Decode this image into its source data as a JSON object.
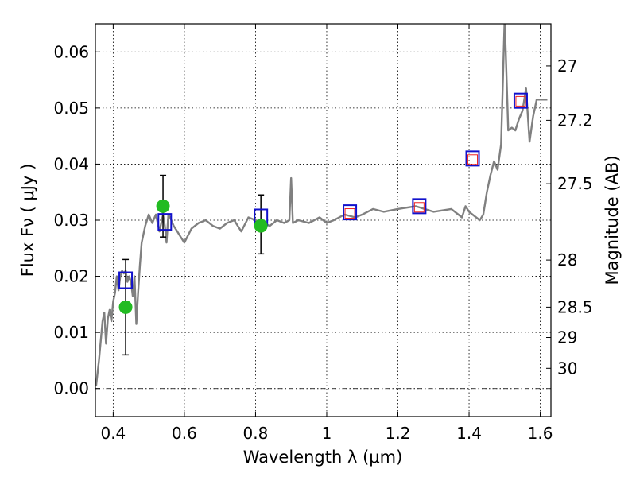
{
  "chart_data": {
    "type": "scatter",
    "xlabel": "Wavelength  λ (μm)",
    "ylabel": "Flux  Fν  ( μJy )",
    "ylabel_right": "Magnitude (AB)",
    "xlim": [
      0.35,
      1.63
    ],
    "ylim": [
      -0.005,
      0.065
    ],
    "grid": true,
    "x_ticks": [
      {
        "value": 0.4,
        "label": "0.4"
      },
      {
        "value": 0.6,
        "label": "0.6"
      },
      {
        "value": 0.8,
        "label": "0.8"
      },
      {
        "value": 1.0,
        "label": "1"
      },
      {
        "value": 1.2,
        "label": "1.2"
      },
      {
        "value": 1.4,
        "label": "1.4"
      },
      {
        "value": 1.6,
        "label": "1.6"
      }
    ],
    "y_ticks": [
      {
        "value": 0.0,
        "label": "0.00"
      },
      {
        "value": 0.01,
        "label": "0.01"
      },
      {
        "value": 0.02,
        "label": "0.02"
      },
      {
        "value": 0.03,
        "label": "0.03"
      },
      {
        "value": 0.04,
        "label": "0.04"
      },
      {
        "value": 0.05,
        "label": "0.05"
      },
      {
        "value": 0.06,
        "label": "0.06"
      }
    ],
    "right_ticks": [
      {
        "flux": 0.0575,
        "label": "27"
      },
      {
        "flux": 0.0478,
        "label": "27.2"
      },
      {
        "flux": 0.0365,
        "label": "27.5"
      },
      {
        "flux": 0.0229,
        "label": "28"
      },
      {
        "flux": 0.0145,
        "label": "28.5"
      },
      {
        "flux": 0.0091,
        "label": "29"
      },
      {
        "flux": 0.0036,
        "label": "30"
      }
    ],
    "series": [
      {
        "name": "model spectrum",
        "kind": "line",
        "color": "#808080",
        "x": [
          0.352,
          0.36,
          0.37,
          0.375,
          0.38,
          0.385,
          0.39,
          0.395,
          0.4,
          0.405,
          0.41,
          0.415,
          0.42,
          0.425,
          0.43,
          0.435,
          0.44,
          0.445,
          0.45,
          0.455,
          0.46,
          0.465,
          0.47,
          0.475,
          0.48,
          0.49,
          0.5,
          0.51,
          0.52,
          0.53,
          0.54,
          0.545,
          0.55,
          0.555,
          0.56,
          0.57,
          0.58,
          0.59,
          0.6,
          0.62,
          0.64,
          0.66,
          0.68,
          0.7,
          0.72,
          0.74,
          0.76,
          0.78,
          0.8,
          0.82,
          0.84,
          0.86,
          0.88,
          0.895,
          0.9,
          0.905,
          0.92,
          0.95,
          0.98,
          1.0,
          1.02,
          1.05,
          1.08,
          1.1,
          1.13,
          1.16,
          1.2,
          1.25,
          1.3,
          1.35,
          1.38,
          1.39,
          1.4,
          1.42,
          1.43,
          1.44,
          1.45,
          1.46,
          1.47,
          1.48,
          1.49,
          1.5,
          1.51,
          1.52,
          1.53,
          1.54,
          1.55,
          1.56,
          1.57,
          1.58,
          1.59,
          1.6,
          1.61,
          1.62
        ],
        "y": [
          0.0005,
          0.005,
          0.012,
          0.0135,
          0.008,
          0.0125,
          0.014,
          0.012,
          0.0155,
          0.017,
          0.02,
          0.0175,
          0.02,
          0.021,
          0.0205,
          0.021,
          0.019,
          0.02,
          0.019,
          0.0165,
          0.02,
          0.0115,
          0.017,
          0.022,
          0.026,
          0.029,
          0.031,
          0.0295,
          0.031,
          0.028,
          0.031,
          0.029,
          0.026,
          0.031,
          0.0305,
          0.029,
          0.028,
          0.027,
          0.026,
          0.0285,
          0.0295,
          0.03,
          0.029,
          0.0285,
          0.0295,
          0.03,
          0.028,
          0.0305,
          0.03,
          0.0295,
          0.029,
          0.03,
          0.0295,
          0.03,
          0.0375,
          0.0295,
          0.03,
          0.0295,
          0.0305,
          0.0295,
          0.03,
          0.031,
          0.0305,
          0.031,
          0.032,
          0.0315,
          0.032,
          0.0325,
          0.0315,
          0.032,
          0.0305,
          0.0325,
          0.0315,
          0.0305,
          0.03,
          0.031,
          0.035,
          0.038,
          0.0405,
          0.039,
          0.0435,
          0.066,
          0.046,
          0.0465,
          0.046,
          0.048,
          0.0495,
          0.0535,
          0.044,
          0.0485,
          0.0515,
          0.0515,
          0.0515,
          0.0515
        ]
      },
      {
        "name": "green points",
        "kind": "marker",
        "marker": "circle",
        "color": "#22bb22",
        "x": [
          0.435,
          0.54,
          0.815
        ],
        "y": [
          0.0145,
          0.0325,
          0.029
        ],
        "yerr_low": [
          0.006,
          0.027,
          0.024
        ],
        "yerr_high": [
          0.023,
          0.038,
          0.0345
        ]
      },
      {
        "name": "blue squares",
        "kind": "marker",
        "marker": "square",
        "color": "#1111cc",
        "x": [
          0.435,
          0.545,
          0.815,
          1.065,
          1.26,
          1.41,
          1.545
        ],
        "y": [
          0.0193,
          0.0297,
          0.0305,
          0.0314,
          0.0325,
          0.041,
          0.0513
        ],
        "size": [
          "big",
          "big",
          "big",
          "small",
          "small",
          "small",
          "small"
        ]
      },
      {
        "name": "red open squares",
        "kind": "marker",
        "marker": "square",
        "color": "#ee2222",
        "x": [
          1.065,
          1.26,
          1.41,
          1.545
        ],
        "y": [
          0.0312,
          0.0323,
          0.0408,
          0.0512
        ]
      }
    ]
  }
}
